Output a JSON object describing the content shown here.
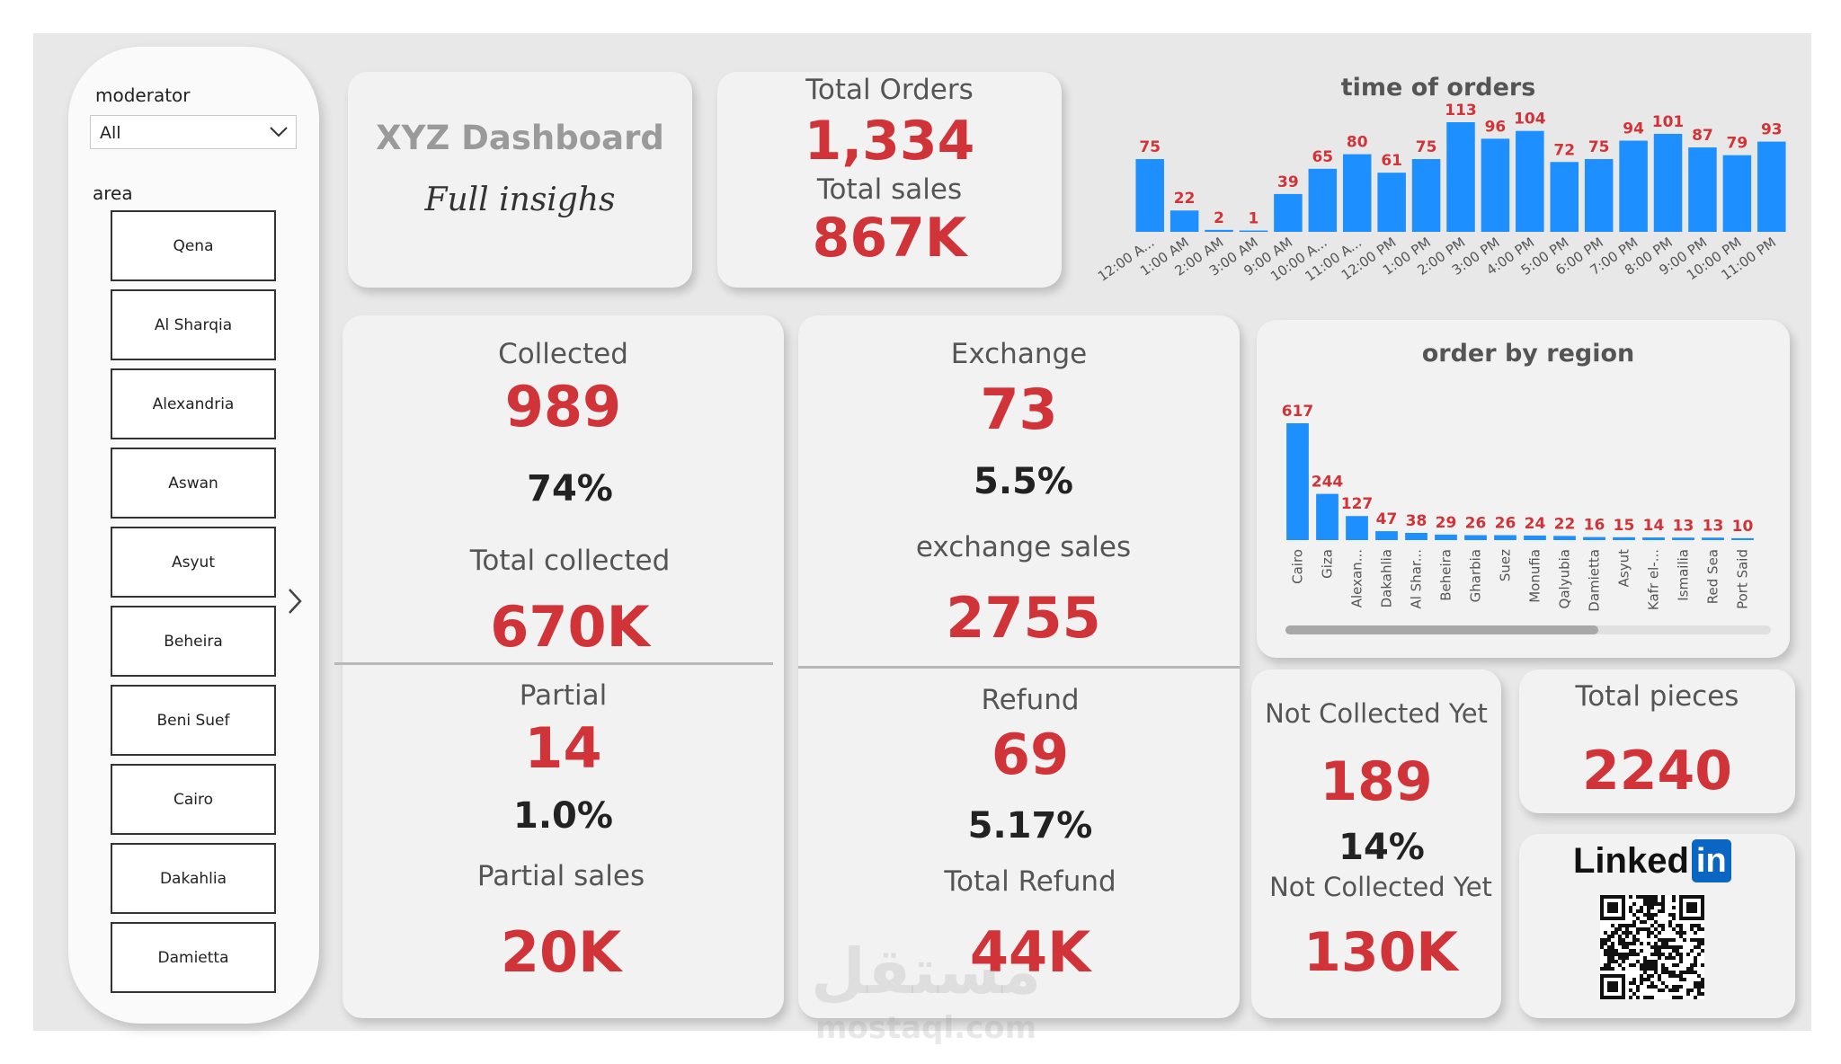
{
  "slicer": {
    "moderator_label": "moderator",
    "moderator_value": "All",
    "area_label": "area",
    "areas": [
      "Qena",
      "Al Sharqia",
      "Alexandria",
      "Aswan",
      "Asyut",
      "Beheira",
      "Beni Suef",
      "Cairo",
      "Dakahlia",
      "Damietta"
    ]
  },
  "title_card": {
    "title": "XYZ Dashboard",
    "subtitle": "Full insighs"
  },
  "totals": {
    "orders_label": "Total Orders",
    "orders_value": "1,334",
    "sales_label": "Total sales",
    "sales_value": "867K"
  },
  "collected": {
    "label": "Collected",
    "value": "989",
    "pct": "74%",
    "total_label": "Total collected",
    "total_value": "670K"
  },
  "partial": {
    "label": "Partial",
    "value": "14",
    "pct": "1.0%",
    "sales_label": "Partial sales",
    "sales_value": "20K"
  },
  "exchange": {
    "label": "Exchange",
    "value": "73",
    "pct": "5.5%",
    "sales_label": "exchange sales",
    "sales_value": "2755"
  },
  "refund": {
    "label": "Refund",
    "value": "69",
    "pct": "5.17%",
    "total_label": "Total Refund",
    "total_value": "44K"
  },
  "not_collected": {
    "label": "Not Collected Yet",
    "value": "189",
    "pct": "14%",
    "label2": "Not Collected Yet",
    "value2": "130K"
  },
  "pieces": {
    "label": "Total pieces",
    "value": "2240"
  },
  "social": {
    "brand_text": "Linked",
    "brand_badge": "in"
  },
  "watermark": {
    "arabic": "مستقل",
    "latin": "mostaql.com"
  },
  "colors": {
    "bar": "#1e8fff",
    "accent_red": "#d13438",
    "card": "#f2f2f2",
    "background": "#e8e8e8"
  },
  "chart_data": [
    {
      "type": "bar",
      "title": "time of orders",
      "categories": [
        "12:00 A...",
        "1:00 AM",
        "2:00 AM",
        "3:00 AM",
        "9:00 AM",
        "10:00 A...",
        "11:00 A...",
        "12:00 PM",
        "1:00 PM",
        "2:00 PM",
        "3:00 PM",
        "4:00 PM",
        "5:00 PM",
        "6:00 PM",
        "7:00 PM",
        "8:00 PM",
        "9:00 PM",
        "10:00 PM",
        "11:00 PM"
      ],
      "values": [
        75,
        22,
        2,
        1,
        39,
        65,
        80,
        61,
        75,
        113,
        96,
        104,
        72,
        75,
        94,
        101,
        87,
        79,
        93
      ],
      "ylim": [
        0,
        113
      ],
      "grid": false
    },
    {
      "type": "bar",
      "title": "order by region",
      "categories": [
        "Cairo",
        "Giza",
        "Alexan...",
        "Dakahlia",
        "Al Shar...",
        "Beheira",
        "Gharbia",
        "Suez",
        "Monufia",
        "Qalyubia",
        "Damietta",
        "Asyut",
        "Kafr el-...",
        "Ismailia",
        "Red Sea",
        "Port Said"
      ],
      "values": [
        617,
        244,
        127,
        47,
        38,
        29,
        26,
        26,
        24,
        22,
        16,
        15,
        14,
        13,
        13,
        10
      ],
      "ylim": [
        0,
        617
      ],
      "grid": false
    }
  ]
}
